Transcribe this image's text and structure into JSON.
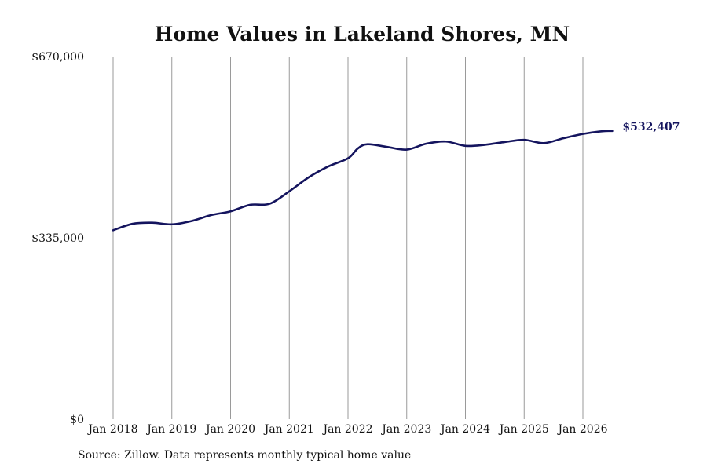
{
  "colors": {
    "line": "#14145e",
    "grid": "#9a9a9a",
    "text": "#111111"
  },
  "chart_data": {
    "type": "line",
    "title": "Home Values in Lakeland Shores, MN",
    "xlabel": "",
    "ylabel": "",
    "ylim": [
      0,
      670000
    ],
    "yticks": [
      {
        "value": 0,
        "label": "$0"
      },
      {
        "value": 335000,
        "label": "$335,000"
      },
      {
        "value": 670000,
        "label": "$670,000"
      }
    ],
    "xticks": [
      {
        "value": "2018-01",
        "label": "Jan 2018"
      },
      {
        "value": "2019-01",
        "label": "Jan 2019"
      },
      {
        "value": "2020-01",
        "label": "Jan 2020"
      },
      {
        "value": "2021-01",
        "label": "Jan 2021"
      },
      {
        "value": "2022-01",
        "label": "Jan 2022"
      },
      {
        "value": "2023-01",
        "label": "Jan 2023"
      },
      {
        "value": "2024-01",
        "label": "Jan 2024"
      },
      {
        "value": "2025-01",
        "label": "Jan 2025"
      },
      {
        "value": "2026-01",
        "label": "Jan 2026"
      }
    ],
    "grid": "vertical",
    "end_label": "$532,407",
    "series": [
      {
        "x": [
          "2018-01",
          "2018-05",
          "2018-09",
          "2019-01",
          "2019-05",
          "2019-09",
          "2020-01",
          "2020-05",
          "2020-09",
          "2021-01",
          "2021-05",
          "2021-09",
          "2022-01",
          "2022-03",
          "2022-05",
          "2022-09",
          "2023-01",
          "2023-05",
          "2023-09",
          "2024-01",
          "2024-05",
          "2024-09",
          "2025-01",
          "2025-05",
          "2025-09",
          "2026-01",
          "2026-05",
          "2026-07"
        ],
        "values": [
          349000,
          361000,
          363000,
          360000,
          366000,
          377000,
          384000,
          396000,
          398000,
          421000,
          447000,
          467000,
          482000,
          500000,
          508000,
          503000,
          498000,
          509000,
          513000,
          505000,
          507000,
          512000,
          516000,
          510000,
          519000,
          527000,
          532000,
          532407
        ]
      }
    ]
  },
  "source_text": "Source: Zillow. Data represents monthly typical home value"
}
